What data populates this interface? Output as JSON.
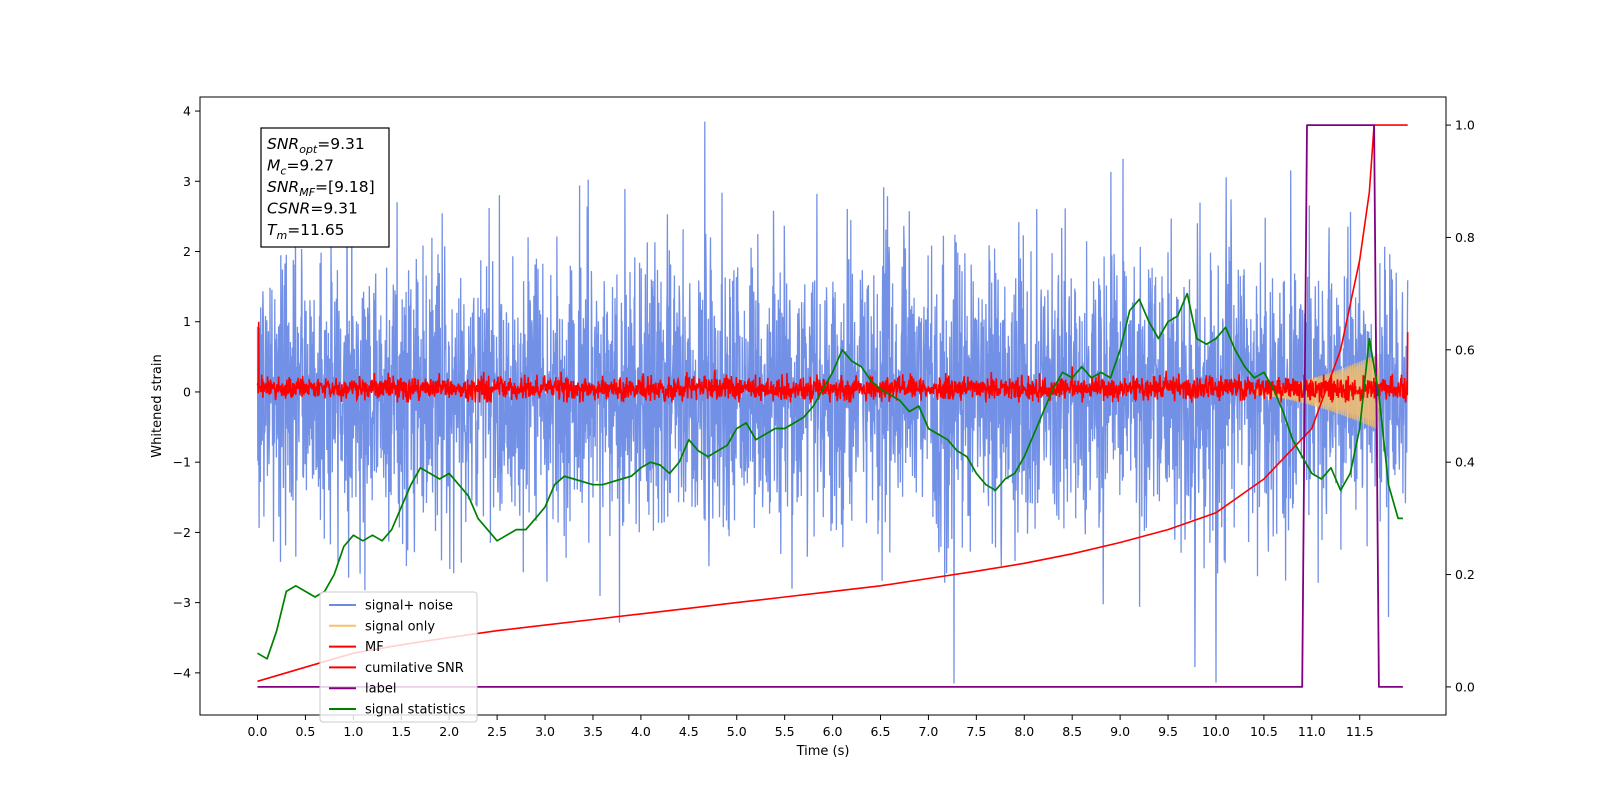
{
  "chart_data": {
    "type": "line",
    "xlabel": "Time (s)",
    "ylabel_left": "Whitened strain",
    "ylabel_right": "",
    "xlim": [
      -0.6,
      12.4
    ],
    "ylim_left": [
      -4.6,
      4.2
    ],
    "ylim_right": [
      -0.05,
      1.05
    ],
    "x_ticks": [
      0.0,
      0.5,
      1.0,
      1.5,
      2.0,
      2.5,
      3.0,
      3.5,
      4.0,
      4.5,
      5.0,
      5.5,
      6.0,
      6.5,
      7.0,
      7.5,
      8.0,
      8.5,
      9.0,
      9.5,
      10.0,
      10.5,
      11.0,
      11.5
    ],
    "x_tick_labels": [
      "0.0",
      "0.5",
      "1.0",
      "1.5",
      "2.0",
      "2.5",
      "3.0",
      "3.5",
      "4.0",
      "4.5",
      "5.0",
      "5.5",
      "6.0",
      "6.5",
      "7.0",
      "7.5",
      "8.0",
      "8.5",
      "9.0",
      "9.5",
      "10.0",
      "10.5",
      "11.0",
      "11.5"
    ],
    "y_ticks_left": [
      4,
      3,
      2,
      1,
      0,
      -1,
      -2,
      -3,
      -4
    ],
    "y_tick_labels_left": [
      "4",
      "3",
      "2",
      "1",
      "0",
      "−1",
      "−2",
      "−3",
      "−4"
    ],
    "y_ticks_right": [
      1.0,
      0.8,
      0.6,
      0.4,
      0.2,
      0.0
    ],
    "y_tick_labels_right": [
      "1.0",
      "0.8",
      "0.6",
      "0.4",
      "0.2",
      "0.0"
    ],
    "grid": false,
    "legend_position": "lower-left",
    "annotation": {
      "lines": [
        {
          "sym": "SNR",
          "sub": "opt",
          "value": "=9.31"
        },
        {
          "sym": "M",
          "sub": "c",
          "value": "=9.27"
        },
        {
          "sym": "SNR",
          "sub": "MF",
          "value": "=[9.18]"
        },
        {
          "sym": "CSNR",
          "sub": "",
          "value": "=9.31"
        },
        {
          "sym": "T",
          "sub": "m",
          "value": "=11.65"
        }
      ]
    },
    "series": [
      {
        "name": "signal+ noise",
        "axis": "left",
        "color": "#6b8ae6",
        "x_range": [
          0.0,
          12.0
        ],
        "mean": 0.0,
        "std": 1.0,
        "min": -4.15,
        "max": 3.85
      },
      {
        "name": "signal only",
        "axis": "left",
        "color": "#f5c06b",
        "x_range": [
          10.4,
          11.7
        ],
        "envelope_start": 0.05,
        "envelope_end": 0.55
      },
      {
        "name": "MF",
        "axis": "left",
        "color": "#ff0000",
        "x_range": [
          0.0,
          12.0
        ],
        "mean": 0.05,
        "amplitude": 0.12,
        "max": 0.4,
        "min": -0.15
      },
      {
        "name": "cumilative SNR",
        "axis": "right",
        "color": "#ff0000",
        "x": [
          0.0,
          0.5,
          1.0,
          1.5,
          2.0,
          2.5,
          3.0,
          3.5,
          4.0,
          4.5,
          5.0,
          5.5,
          6.0,
          6.5,
          7.0,
          7.5,
          8.0,
          8.5,
          9.0,
          9.5,
          10.0,
          10.5,
          11.0,
          11.3,
          11.5,
          11.6,
          11.65,
          12.0
        ],
        "y": [
          0.01,
          0.035,
          0.06,
          0.075,
          0.088,
          0.1,
          0.11,
          0.12,
          0.13,
          0.14,
          0.15,
          0.16,
          0.17,
          0.18,
          0.193,
          0.206,
          0.22,
          0.237,
          0.257,
          0.28,
          0.31,
          0.37,
          0.46,
          0.6,
          0.76,
          0.88,
          1.0,
          1.0
        ]
      },
      {
        "name": "label",
        "axis": "right",
        "color": "#800080",
        "x": [
          0.0,
          10.9,
          10.95,
          11.65,
          11.7,
          11.95
        ],
        "y": [
          0.0,
          0.0,
          1.0,
          1.0,
          0.0,
          0.0
        ]
      },
      {
        "name": "signal statistics",
        "axis": "right",
        "color": "#008000",
        "x": [
          0.0,
          0.1,
          0.2,
          0.3,
          0.4,
          0.5,
          0.6,
          0.7,
          0.8,
          0.9,
          1.0,
          1.1,
          1.2,
          1.3,
          1.4,
          1.5,
          1.6,
          1.7,
          1.8,
          1.9,
          2.0,
          2.1,
          2.2,
          2.3,
          2.4,
          2.5,
          2.6,
          2.7,
          2.8,
          2.9,
          3.0,
          3.1,
          3.2,
          3.3,
          3.4,
          3.5,
          3.6,
          3.7,
          3.8,
          3.9,
          4.0,
          4.1,
          4.2,
          4.3,
          4.4,
          4.5,
          4.6,
          4.7,
          4.8,
          4.9,
          5.0,
          5.1,
          5.2,
          5.3,
          5.4,
          5.5,
          5.6,
          5.7,
          5.8,
          5.9,
          6.0,
          6.1,
          6.2,
          6.3,
          6.4,
          6.5,
          6.6,
          6.7,
          6.8,
          6.9,
          7.0,
          7.1,
          7.2,
          7.3,
          7.4,
          7.5,
          7.6,
          7.7,
          7.8,
          7.9,
          8.0,
          8.1,
          8.2,
          8.3,
          8.4,
          8.5,
          8.6,
          8.7,
          8.8,
          8.9,
          9.0,
          9.1,
          9.2,
          9.3,
          9.4,
          9.5,
          9.6,
          9.7,
          9.8,
          9.9,
          10.0,
          10.1,
          10.2,
          10.3,
          10.4,
          10.5,
          10.6,
          10.7,
          10.8,
          10.9,
          11.0,
          11.1,
          11.2,
          11.3,
          11.4,
          11.5,
          11.6,
          11.7,
          11.8,
          11.9,
          11.95
        ],
        "y": [
          0.06,
          0.05,
          0.1,
          0.17,
          0.18,
          0.17,
          0.16,
          0.17,
          0.2,
          0.25,
          0.27,
          0.26,
          0.27,
          0.26,
          0.28,
          0.32,
          0.36,
          0.39,
          0.38,
          0.37,
          0.38,
          0.36,
          0.34,
          0.3,
          0.28,
          0.26,
          0.27,
          0.28,
          0.28,
          0.3,
          0.32,
          0.36,
          0.375,
          0.37,
          0.365,
          0.36,
          0.36,
          0.365,
          0.37,
          0.375,
          0.39,
          0.4,
          0.395,
          0.38,
          0.4,
          0.44,
          0.42,
          0.41,
          0.42,
          0.43,
          0.46,
          0.47,
          0.44,
          0.45,
          0.46,
          0.46,
          0.47,
          0.48,
          0.5,
          0.53,
          0.56,
          0.6,
          0.58,
          0.57,
          0.545,
          0.53,
          0.52,
          0.51,
          0.49,
          0.5,
          0.46,
          0.45,
          0.44,
          0.42,
          0.41,
          0.38,
          0.36,
          0.35,
          0.37,
          0.38,
          0.41,
          0.45,
          0.49,
          0.53,
          0.56,
          0.55,
          0.57,
          0.55,
          0.56,
          0.55,
          0.6,
          0.67,
          0.69,
          0.65,
          0.62,
          0.65,
          0.66,
          0.7,
          0.62,
          0.61,
          0.62,
          0.64,
          0.6,
          0.57,
          0.55,
          0.56,
          0.53,
          0.49,
          0.44,
          0.41,
          0.38,
          0.37,
          0.39,
          0.35,
          0.38,
          0.46,
          0.62,
          0.52,
          0.36,
          0.3,
          0.3
        ]
      }
    ]
  }
}
